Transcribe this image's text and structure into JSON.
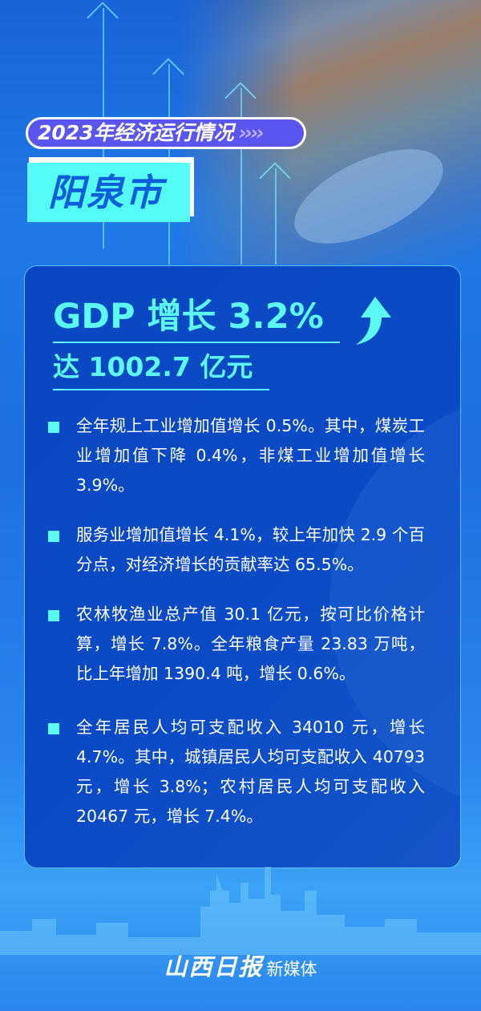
{
  "header": {
    "tag": "2023年经济运行情况",
    "tag_chevrons": "››››",
    "city": "阳泉市"
  },
  "headline": {
    "gdp": "GDP 增长 3.2%",
    "total": "达 1002.7 亿元",
    "arrow_icon": "up-arrow-icon"
  },
  "items": [
    {
      "text": "全年规上工业增加值增长 0.5%。其中，煤炭工业增加值下降 0.4%，非煤工业增加值增长 3.9%。"
    },
    {
      "text": "服务业增加值增长 4.1%，较上年加快 2.9 个百分点，对经济增长的贡献率达 65.5%。"
    },
    {
      "text": "农林牧渔业总产值 30.1 亿元，按可比价格计算，增长 7.8%。全年粮食产量 23.83 万吨，比上年增加 1390.4 吨，增长 0.6%。"
    },
    {
      "text": "全年居民人均可支配收入 34010 元，增长 4.7%。其中，城镇居民人均可支配收入 40793 元，增长 3.8%；农村居民人均可支配收入 20467 元，增长 7.4%。"
    }
  ],
  "footer": {
    "logo": "山西日报",
    "sub": "新媒体"
  },
  "colors": {
    "accent": "#5cf8f4",
    "panel": "#0a46c2",
    "tag": "#5b55f0",
    "background": "#1f7ae8"
  }
}
